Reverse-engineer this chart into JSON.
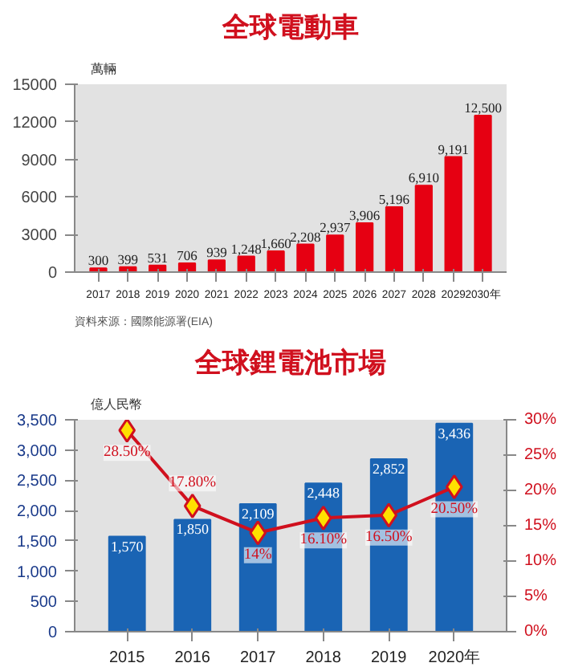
{
  "chart_data": [
    {
      "type": "bar",
      "title": "全球電動車",
      "ylabel": "萬輛",
      "categories": [
        "2017",
        "2018",
        "2019",
        "2020",
        "2021",
        "2022",
        "2023",
        "2024",
        "2025",
        "2026",
        "2027",
        "2028",
        "2029",
        "2030年"
      ],
      "values": [
        300,
        399,
        531,
        706,
        939,
        1248,
        1660,
        2208,
        2937,
        3906,
        5196,
        6910,
        9191,
        12500
      ],
      "value_labels": [
        "300",
        "399",
        "531",
        "706",
        "939",
        "1,248",
        "1,660",
        "2,208",
        "2,937",
        "3,906",
        "5,196",
        "6,910",
        "9,191",
        "12,500"
      ],
      "color": "#e60012",
      "ylim": [
        0,
        15000
      ],
      "yticks": [
        0,
        3000,
        6000,
        9000,
        12000,
        15000
      ],
      "annotations": [
        "資料來源：國際能源署(EIA)"
      ]
    },
    {
      "type": "bar",
      "title": "全球鋰電池市場",
      "ylabel": "億人民幣",
      "categories": [
        "2015",
        "2016",
        "2017",
        "2018",
        "2019",
        "2020年"
      ],
      "series": [
        {
          "type": "bar",
          "color": "#1a64b4",
          "values": [
            1570,
            1850,
            2109,
            2448,
            2852,
            3436
          ],
          "value_labels": [
            "1,570",
            "1,850",
            "2,109",
            "2,448",
            "2,852",
            "3,436"
          ]
        },
        {
          "type": "line",
          "axis": "y2",
          "color": "#d0101e",
          "marker": "diamond",
          "values": [
            28.5,
            17.8,
            14,
            16.1,
            16.5,
            20.5
          ],
          "value_labels": [
            "28.50%",
            "17.80%",
            "14%",
            "16.10%",
            "16.50%",
            "20.50%"
          ]
        }
      ],
      "ylim": [
        0,
        3500
      ],
      "yticks": [
        0,
        {
          "value": 500,
          "label": "500"
        },
        {
          "value": 1000,
          "label": "1,000"
        },
        {
          "value": 1500,
          "label": "1,500"
        },
        {
          "value": 2000,
          "label": "2,000"
        },
        {
          "value": 2500,
          "label": "2,500"
        },
        {
          "value": 3000,
          "label": "3,000"
        },
        {
          "value": 3500,
          "label": "3,500"
        }
      ],
      "y2lim": [
        0,
        30
      ],
      "y2ticks": [
        {
          "value": 0,
          "label": "0%"
        },
        {
          "value": 5,
          "label": "5%"
        },
        {
          "value": 10,
          "label": "10%"
        },
        {
          "value": 15,
          "label": "15%"
        },
        {
          "value": 20,
          "label": "20%"
        },
        {
          "value": 25,
          "label": "25%"
        },
        {
          "value": 30,
          "label": "30%"
        }
      ]
    }
  ]
}
